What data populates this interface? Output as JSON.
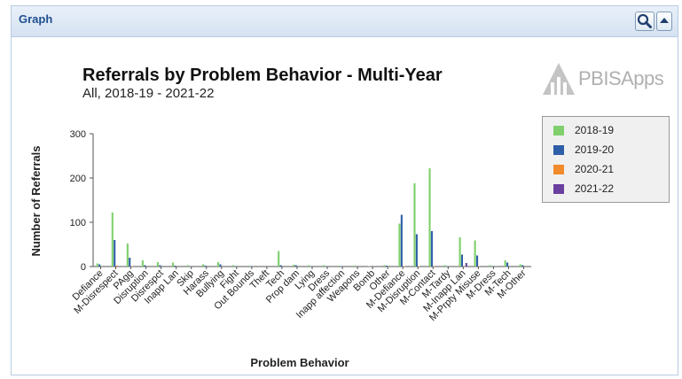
{
  "panel": {
    "title": "Graph"
  },
  "logo": {
    "text": "PBISApps"
  },
  "colors": {
    "series": [
      "#7fcf6d",
      "#2f5fa8",
      "#f08a2c",
      "#6a3fa0"
    ],
    "header_text": "#1f4f8f"
  },
  "chart_data": {
    "type": "bar",
    "title": "Referrals by Problem Behavior - Multi-Year",
    "subtitle": "All, 2018-19 - 2021-22",
    "xlabel": "Problem Behavior",
    "ylabel": "Number of Referrals",
    "ylim": [
      0,
      300
    ],
    "yticks": [
      0,
      100,
      200,
      300
    ],
    "grid": false,
    "legend_position": "right",
    "categories": [
      "Defiance",
      "M-Disrespect",
      "PAgg",
      "Disruption",
      "Disrespct",
      "Inapp Lan",
      "Skip",
      "Harass",
      "Bullying",
      "Fight",
      "Out Bounds",
      "Theft",
      "Tech",
      "Prop dam",
      "Lying",
      "Dress",
      "Inapp affection",
      "Weapons",
      "Bomb",
      "Other",
      "M-Defiance",
      "M-Disruption",
      "M-Contact",
      "M-Tardy",
      "M-Inapp Lan",
      "M-Prpty Misuse",
      "M-Dress",
      "M-Tech",
      "M-Other"
    ],
    "series": [
      {
        "name": "2018-19",
        "color": "#7fcf6d",
        "values": [
          7,
          122,
          52,
          14,
          10,
          9,
          3,
          5,
          10,
          3,
          2,
          0,
          35,
          4,
          3,
          3,
          2,
          2,
          1,
          3,
          97,
          188,
          222,
          3,
          66,
          59,
          3,
          14,
          5
        ]
      },
      {
        "name": "2019-20",
        "color": "#2f5fa8",
        "values": [
          5,
          60,
          20,
          3,
          3,
          2,
          1,
          2,
          5,
          1,
          1,
          0,
          3,
          3,
          1,
          1,
          1,
          0,
          0,
          2,
          117,
          73,
          80,
          1,
          27,
          25,
          1,
          9,
          3
        ]
      },
      {
        "name": "2020-21",
        "color": "#f08a2c",
        "values": [
          0,
          2,
          1,
          0,
          0,
          0,
          0,
          0,
          0,
          0,
          0,
          0,
          0,
          0,
          0,
          0,
          0,
          0,
          0,
          0,
          1,
          1,
          1,
          0,
          1,
          1,
          0,
          0,
          0
        ]
      },
      {
        "name": "2021-22",
        "color": "#6a3fa0",
        "values": [
          0,
          1,
          0,
          0,
          0,
          0,
          0,
          0,
          0,
          0,
          0,
          0,
          0,
          0,
          0,
          0,
          0,
          0,
          0,
          0,
          0,
          0,
          0,
          0,
          8,
          0,
          0,
          0,
          0
        ]
      }
    ]
  }
}
